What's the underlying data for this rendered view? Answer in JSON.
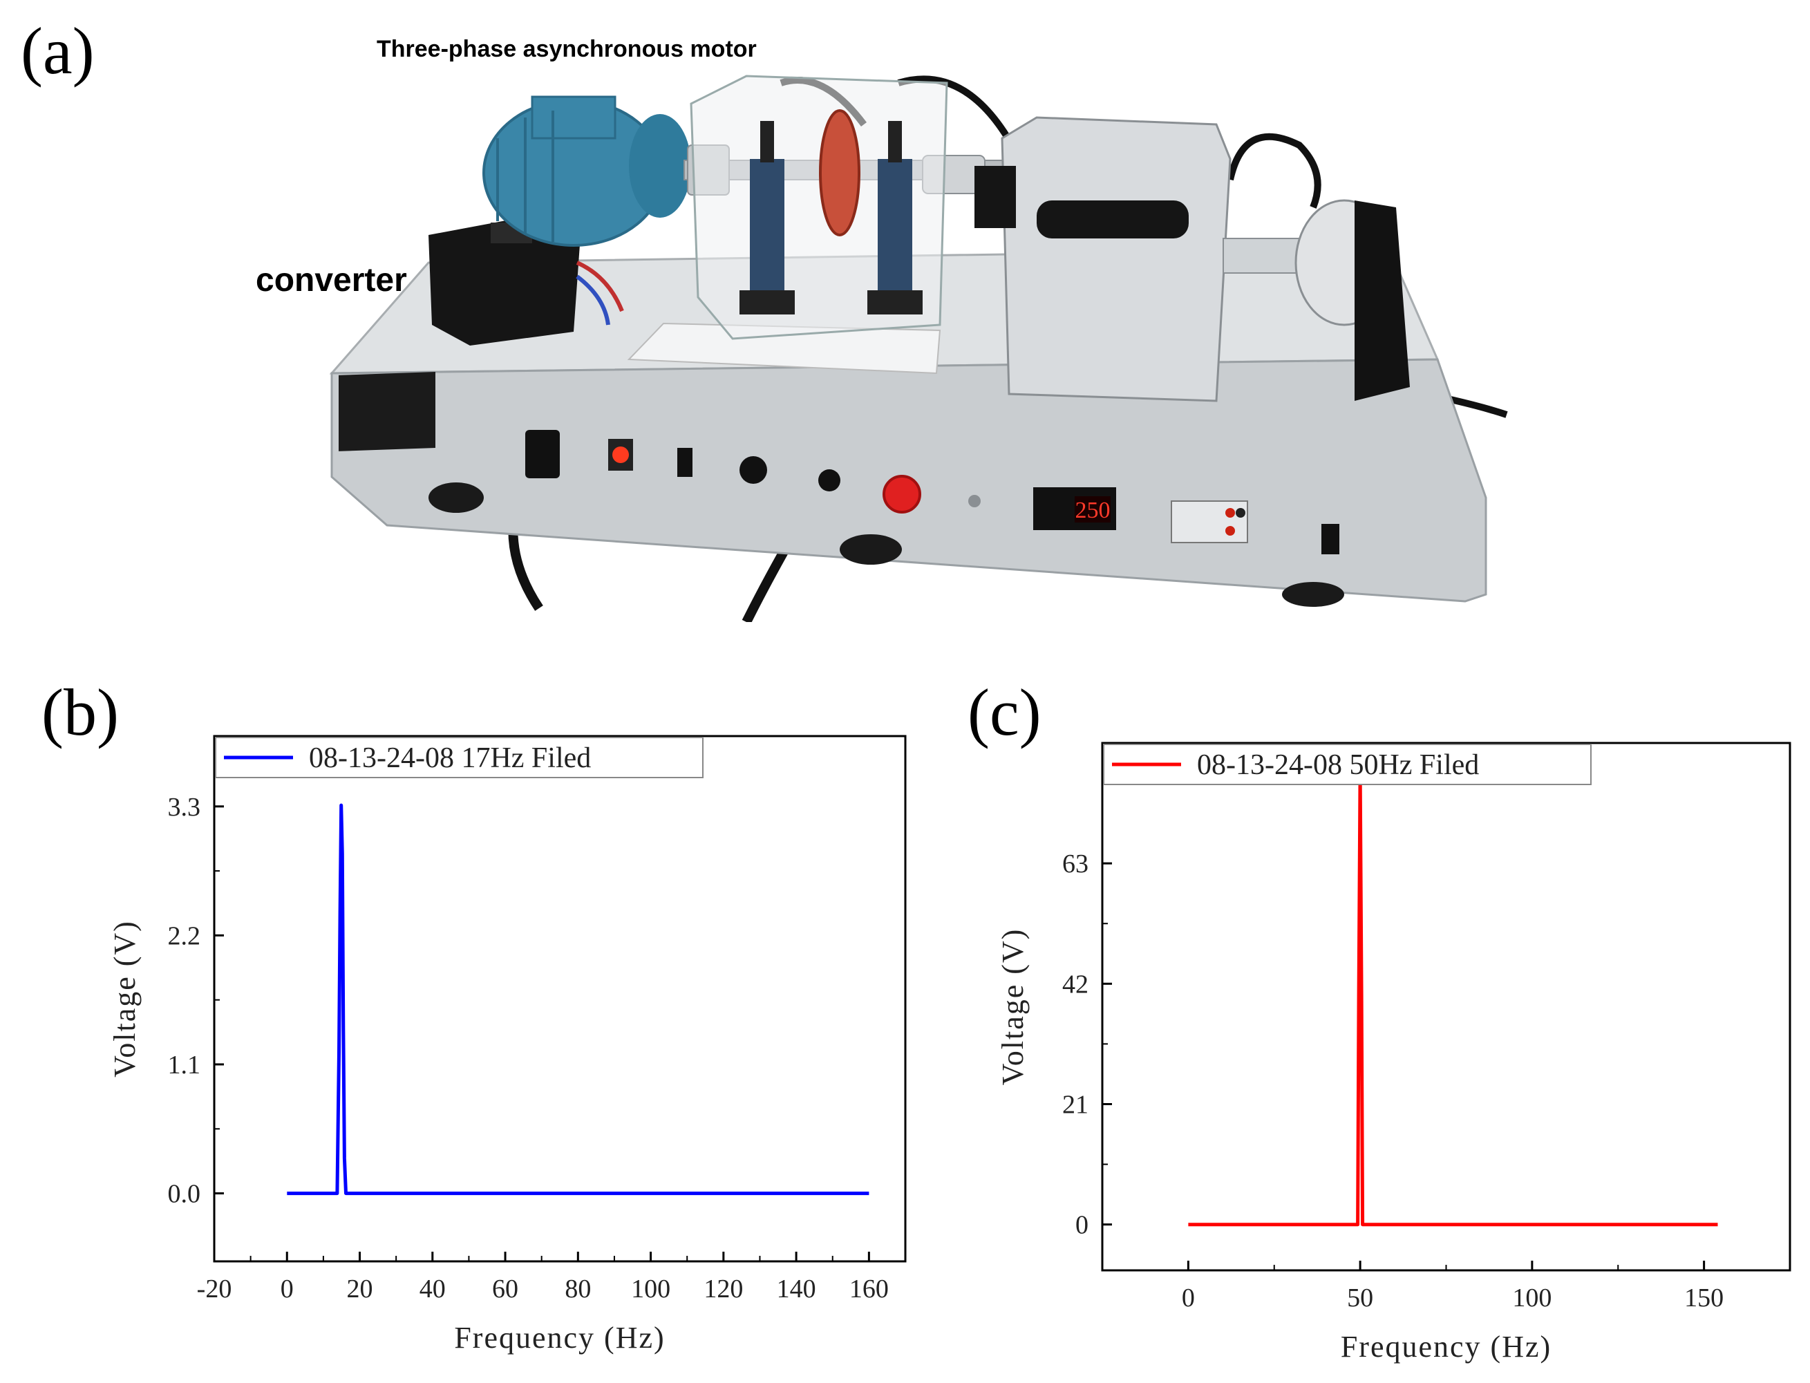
{
  "panels": {
    "a": "(a)",
    "b": "(b)",
    "c": "(c)"
  },
  "photo": {
    "motor_label": "Three-phase asynchronous motor",
    "converter_label": "converter",
    "display_reading": "250"
  },
  "colors": {
    "blue_series": "#0000ff",
    "red_series": "#ff0000",
    "motor_blue": "#3a86a8",
    "rig_aluminum": "#cfd3d6"
  },
  "chart_data": [
    {
      "type": "line",
      "panel": "(b)",
      "title": "",
      "xlabel": "Frequency (Hz)",
      "ylabel": "Voltage (V)",
      "xlim": [
        -20,
        170
      ],
      "ylim": [
        -0.58,
        3.9
      ],
      "xticks": [
        -20,
        0,
        20,
        40,
        60,
        80,
        100,
        120,
        140,
        160
      ],
      "xtick_labels": [
        "-20",
        "0",
        "20",
        "40",
        "60",
        "80",
        "100",
        "120",
        "140",
        "160"
      ],
      "yticks": [
        0,
        1.1,
        2.2,
        3.3
      ],
      "ytick_labels": [
        "0.0",
        "1.1",
        "2.2",
        "3.3"
      ],
      "legend_position": "top-left",
      "series": [
        {
          "name": "08-13-24-08 17Hz Filed",
          "color": "#0000ff",
          "x": [
            0,
            13.8,
            14.3,
            14.6,
            14.9,
            15.2,
            15.5,
            15.8,
            16.2,
            160
          ],
          "y": [
            0,
            0,
            1.2,
            2.4,
            3.31,
            2.9,
            1.4,
            0.3,
            0,
            0
          ]
        }
      ]
    },
    {
      "type": "line",
      "panel": "(c)",
      "title": "",
      "xlabel": "Frequency (Hz)",
      "ylabel": "Voltage (V)",
      "xlim": [
        -25,
        175
      ],
      "ylim": [
        -8,
        84
      ],
      "xticks": [
        0,
        50,
        100,
        150
      ],
      "xtick_labels": [
        "0",
        "50",
        "100",
        "150"
      ],
      "yticks": [
        0,
        21,
        42,
        63
      ],
      "ytick_labels": [
        "0",
        "21",
        "42",
        "63"
      ],
      "legend_position": "top-left",
      "series": [
        {
          "name": "08-13-24-08 50Hz Filed",
          "color": "#ff0000",
          "x": [
            0,
            49.3,
            49.6,
            50,
            50.4,
            50.7,
            154
          ],
          "y": [
            0,
            0,
            40,
            79,
            40,
            0,
            0
          ]
        }
      ]
    }
  ]
}
